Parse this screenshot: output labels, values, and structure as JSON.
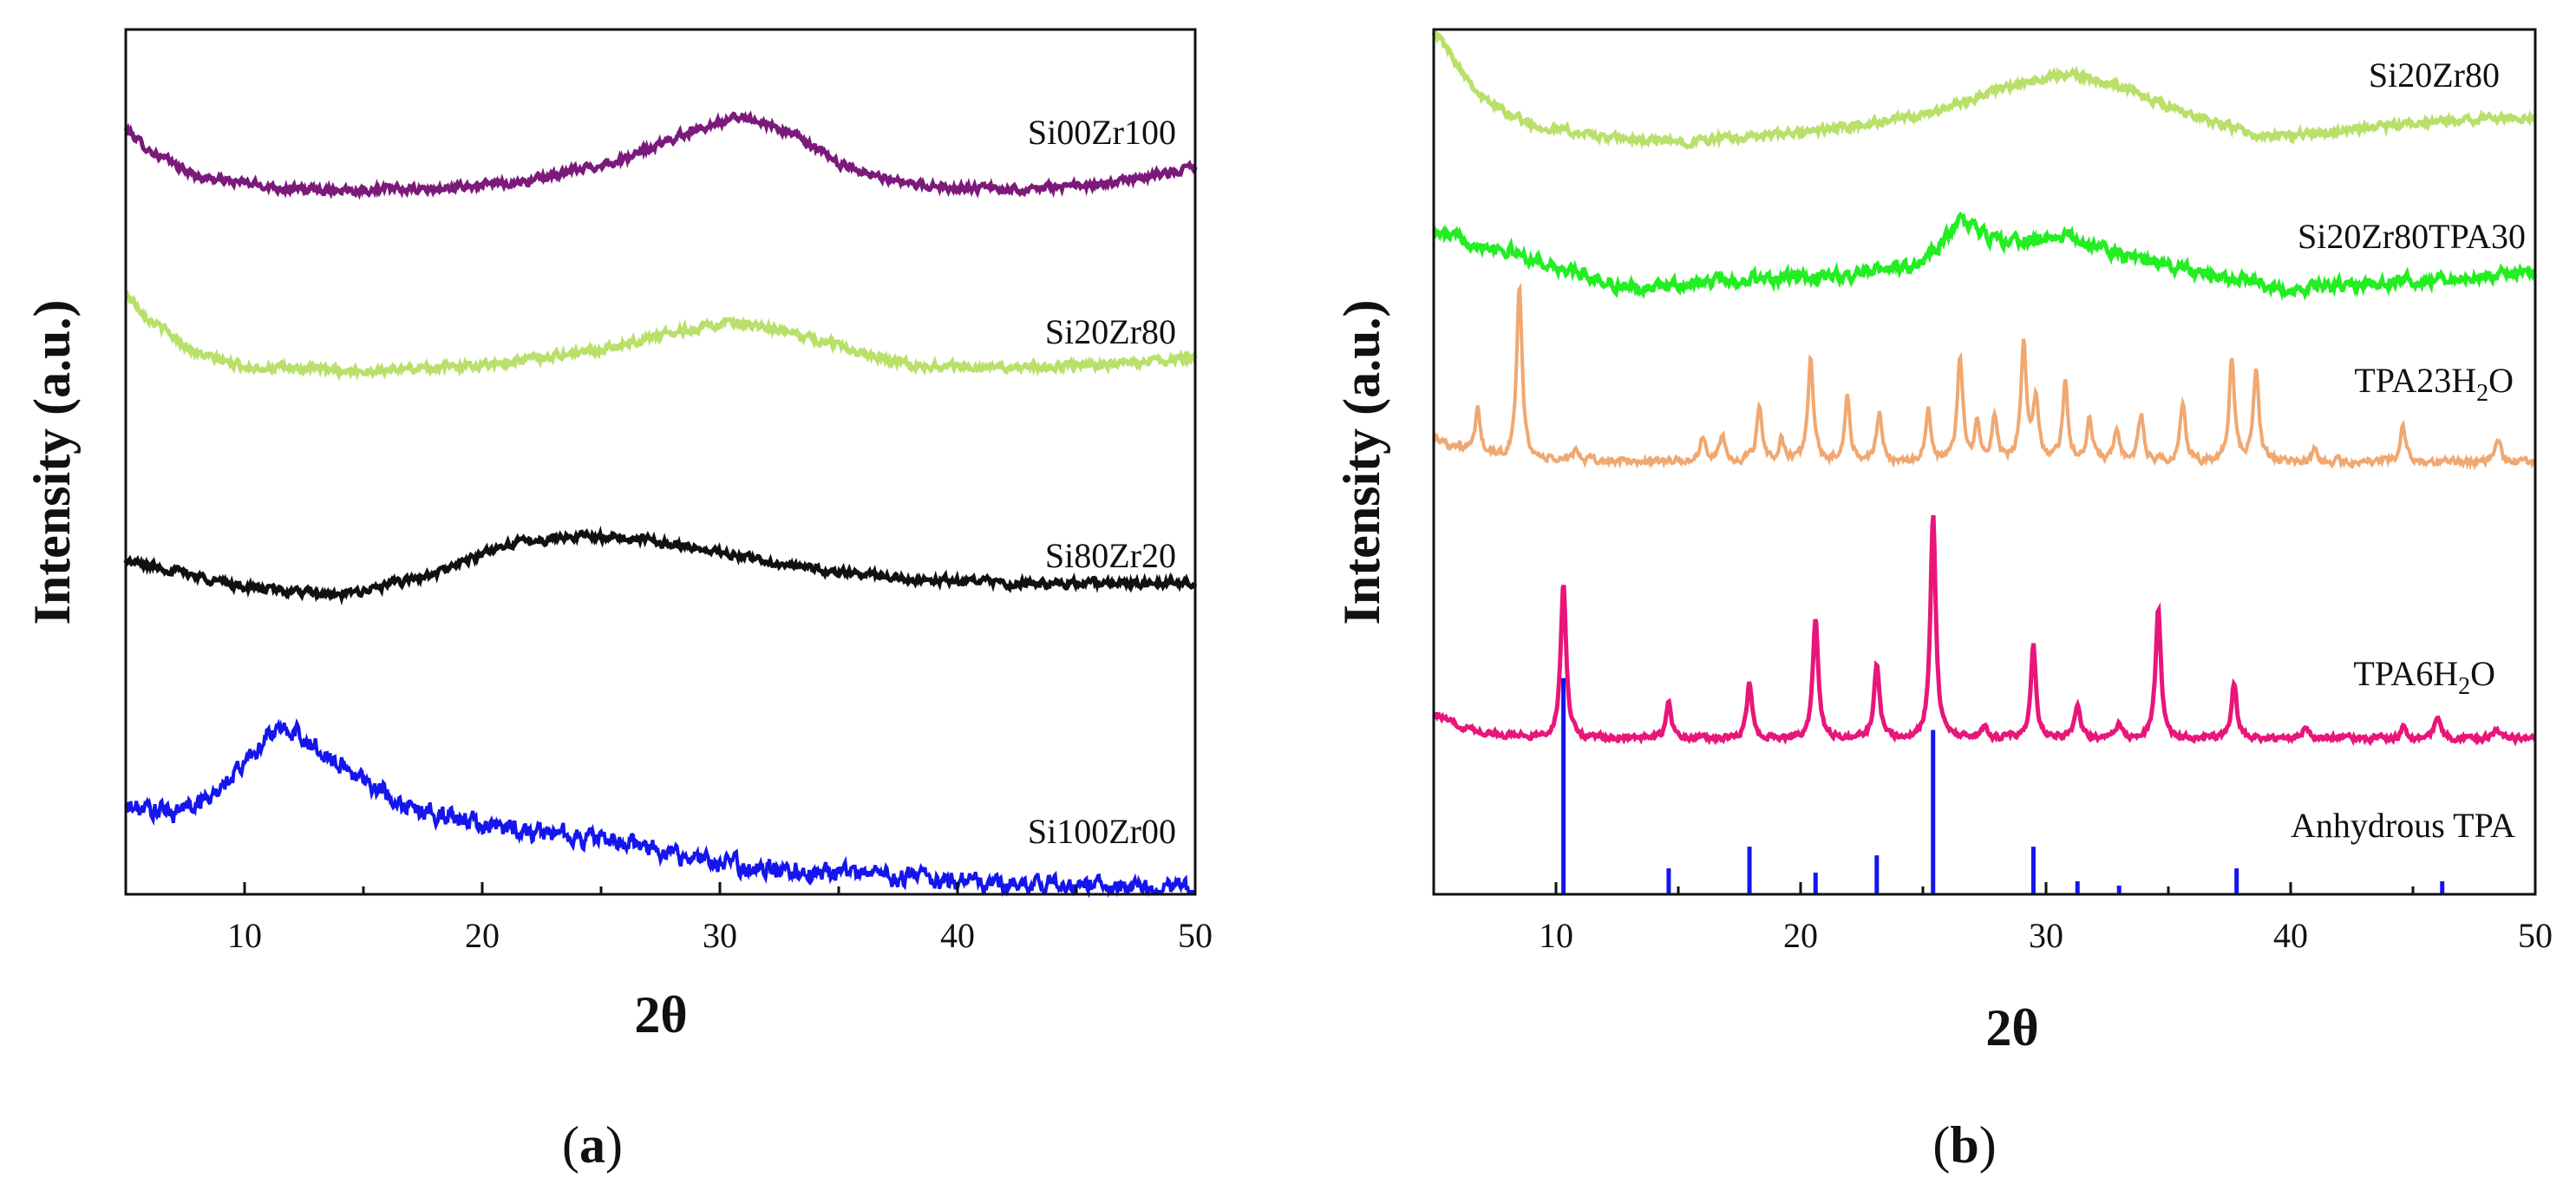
{
  "chart_data": [
    {
      "id": "a",
      "type": "line",
      "panel_label": "(a)",
      "panel_label_letter": "a",
      "xlabel": "2θ",
      "ylabel": "Intensity (a.u.)",
      "xlim": [
        5,
        50
      ],
      "xticks": [
        "10",
        "20",
        "30",
        "40",
        "50"
      ],
      "tick_values": [
        10,
        20,
        30,
        40,
        50
      ],
      "y_units": "a.u. (stacked, offset)",
      "series": [
        {
          "name": "Si00Zr100",
          "color": "#7b1a7b",
          "baseline": 0.81,
          "noise": 0.004,
          "points": [
            [
              5,
              0.885
            ],
            [
              6,
              0.86
            ],
            [
              8,
              0.83
            ],
            [
              12,
              0.815
            ],
            [
              18,
              0.815
            ],
            [
              22,
              0.825
            ],
            [
              26,
              0.85
            ],
            [
              29,
              0.885
            ],
            [
              31,
              0.9
            ],
            [
              33,
              0.88
            ],
            [
              35,
              0.845
            ],
            [
              38,
              0.82
            ],
            [
              42,
              0.815
            ],
            [
              46,
              0.82
            ],
            [
              50,
              0.84
            ]
          ]
        },
        {
          "name": "Si20Zr80",
          "color": "#b8e06a",
          "noise": 0.004,
          "points": [
            [
              5,
              0.695
            ],
            [
              6,
              0.665
            ],
            [
              8,
              0.625
            ],
            [
              10,
              0.61
            ],
            [
              15,
              0.605
            ],
            [
              20,
              0.612
            ],
            [
              25,
              0.63
            ],
            [
              28,
              0.65
            ],
            [
              30,
              0.66
            ],
            [
              32,
              0.655
            ],
            [
              35,
              0.635
            ],
            [
              38,
              0.612
            ],
            [
              42,
              0.608
            ],
            [
              46,
              0.612
            ],
            [
              50,
              0.62
            ]
          ]
        },
        {
          "name": "Si80Zr20",
          "color": "#111111",
          "noise": 0.004,
          "points": [
            [
              5,
              0.385
            ],
            [
              7,
              0.375
            ],
            [
              10,
              0.355
            ],
            [
              14,
              0.345
            ],
            [
              18,
              0.37
            ],
            [
              21,
              0.405
            ],
            [
              24,
              0.415
            ],
            [
              27,
              0.41
            ],
            [
              30,
              0.395
            ],
            [
              34,
              0.375
            ],
            [
              38,
              0.365
            ],
            [
              42,
              0.36
            ],
            [
              46,
              0.36
            ],
            [
              50,
              0.36
            ]
          ]
        },
        {
          "name": "Si100Zr00",
          "color": "#1515ee",
          "noise": 0.01,
          "points": [
            [
              5,
              0.1
            ],
            [
              7,
              0.095
            ],
            [
              9,
              0.12
            ],
            [
              11,
              0.185
            ],
            [
              12,
              0.19
            ],
            [
              14,
              0.15
            ],
            [
              17,
              0.1
            ],
            [
              20,
              0.08
            ],
            [
              23,
              0.07
            ],
            [
              26,
              0.06
            ],
            [
              30,
              0.035
            ],
            [
              35,
              0.025
            ],
            [
              40,
              0.015
            ],
            [
              45,
              0.01
            ],
            [
              50,
              0.005
            ]
          ]
        }
      ]
    },
    {
      "id": "b",
      "type": "line",
      "panel_label": "(b)",
      "panel_label_letter": "b",
      "xlabel": "2θ",
      "ylabel": "Intensity (a.u.)",
      "xlim": [
        5,
        50
      ],
      "xticks": [
        "10",
        "20",
        "30",
        "40",
        "50"
      ],
      "tick_values": [
        10,
        20,
        30,
        40,
        50
      ],
      "y_units": "a.u. (stacked, offset)",
      "series": [
        {
          "name": "Si20Zr80",
          "color": "#b8e06a",
          "noise": 0.004,
          "points": [
            [
              5,
              1.0
            ],
            [
              6,
              0.96
            ],
            [
              7,
              0.92
            ],
            [
              9,
              0.89
            ],
            [
              12,
              0.875
            ],
            [
              15,
              0.87
            ],
            [
              20,
              0.88
            ],
            [
              25,
              0.9
            ],
            [
              28,
              0.93
            ],
            [
              31,
              0.95
            ],
            [
              33,
              0.935
            ],
            [
              36,
              0.9
            ],
            [
              39,
              0.875
            ],
            [
              43,
              0.885
            ],
            [
              47,
              0.895
            ],
            [
              50,
              0.9
            ]
          ]
        },
        {
          "name": "Si20Zr80TPA30",
          "color": "#22ee22",
          "noise": 0.006,
          "points": [
            [
              5,
              0.765
            ],
            [
              8,
              0.745
            ],
            [
              10,
              0.725
            ],
            [
              13,
              0.7
            ],
            [
              17,
              0.71
            ],
            [
              22,
              0.715
            ],
            [
              25,
              0.73
            ],
            [
              26.5,
              0.78
            ],
            [
              28,
              0.755
            ],
            [
              31,
              0.76
            ],
            [
              33,
              0.74
            ],
            [
              36,
              0.72
            ],
            [
              40,
              0.7
            ],
            [
              45,
              0.71
            ],
            [
              50,
              0.72
            ]
          ]
        },
        {
          "name": "TPA23H₂O",
          "name_main": "TPA23H",
          "name_sub": "2",
          "name_end": "O",
          "color": "#f0a870",
          "baseline": 0.5,
          "noise": 0.004,
          "peaks": [
            [
              6.8,
              0.05
            ],
            [
              8.5,
              0.2
            ],
            [
              10.8,
              0.015
            ],
            [
              16.0,
              0.03
            ],
            [
              16.8,
              0.03
            ],
            [
              18.3,
              0.06
            ],
            [
              19.2,
              0.025
            ],
            [
              20.4,
              0.12
            ],
            [
              21.9,
              0.075
            ],
            [
              23.2,
              0.055
            ],
            [
              25.2,
              0.06
            ],
            [
              26.5,
              0.12
            ],
            [
              27.2,
              0.04
            ],
            [
              27.9,
              0.05
            ],
            [
              29.1,
              0.135
            ],
            [
              29.6,
              0.07
            ],
            [
              30.8,
              0.09
            ],
            [
              31.8,
              0.05
            ],
            [
              32.9,
              0.035
            ],
            [
              33.9,
              0.055
            ],
            [
              35.6,
              0.07
            ],
            [
              37.6,
              0.12
            ],
            [
              38.6,
              0.11
            ],
            [
              41.0,
              0.015
            ],
            [
              44.6,
              0.04
            ],
            [
              48.5,
              0.025
            ]
          ]
        },
        {
          "name": "TPA6H₂O",
          "name_main": "TPA6H",
          "name_sub": "2",
          "name_end": "O",
          "color": "#e8167a",
          "baseline": 0.18,
          "noise": 0.003,
          "peaks": [
            [
              10.3,
              0.18
            ],
            [
              14.6,
              0.04
            ],
            [
              17.9,
              0.065
            ],
            [
              20.6,
              0.14
            ],
            [
              23.1,
              0.085
            ],
            [
              25.4,
              0.26
            ],
            [
              27.5,
              0.015
            ],
            [
              29.5,
              0.105
            ],
            [
              31.3,
              0.04
            ],
            [
              33.0,
              0.015
            ],
            [
              34.6,
              0.15
            ],
            [
              37.7,
              0.065
            ],
            [
              40.6,
              0.012
            ],
            [
              44.6,
              0.012
            ],
            [
              46.0,
              0.028
            ],
            [
              48.4,
              0.012
            ]
          ]
        }
      ],
      "reference": {
        "name": "Anhydrous TPA",
        "color": "#1515ee",
        "sticks": [
          [
            10.3,
            0.25
          ],
          [
            14.6,
            0.03
          ],
          [
            17.9,
            0.055
          ],
          [
            20.6,
            0.025
          ],
          [
            23.1,
            0.045
          ],
          [
            25.4,
            0.19
          ],
          [
            29.5,
            0.055
          ],
          [
            31.3,
            0.015
          ],
          [
            33.0,
            0.01
          ],
          [
            37.8,
            0.03
          ],
          [
            46.2,
            0.015
          ]
        ]
      }
    }
  ]
}
